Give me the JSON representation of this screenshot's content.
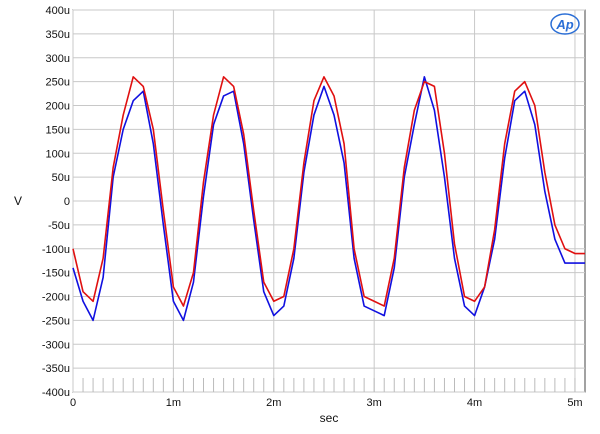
{
  "chart_data": {
    "type": "line",
    "title": "",
    "xlabel": "sec",
    "ylabel": "V",
    "xlim": [
      0,
      0.0051
    ],
    "ylim": [
      -0.0004,
      0.0004
    ],
    "grid": true,
    "logo_text": "Ap",
    "x_ticks": [
      {
        "value": 0,
        "label": "0"
      },
      {
        "value": 0.001,
        "label": "1m"
      },
      {
        "value": 0.002,
        "label": "2m"
      },
      {
        "value": 0.003,
        "label": "3m"
      },
      {
        "value": 0.004,
        "label": "4m"
      },
      {
        "value": 0.005,
        "label": "5m"
      }
    ],
    "y_ticks": [
      {
        "value": 0.0004,
        "label": "400u"
      },
      {
        "value": 0.00035,
        "label": "350u"
      },
      {
        "value": 0.0003,
        "label": "300u"
      },
      {
        "value": 0.00025,
        "label": "250u"
      },
      {
        "value": 0.0002,
        "label": "200u"
      },
      {
        "value": 0.00015,
        "label": "150u"
      },
      {
        "value": 0.0001,
        "label": "100u"
      },
      {
        "value": 5e-05,
        "label": "50u"
      },
      {
        "value": 0,
        "label": "0"
      },
      {
        "value": -5e-05,
        "label": "-50u"
      },
      {
        "value": -0.0001,
        "label": "-100u"
      },
      {
        "value": -0.00015,
        "label": "-150u"
      },
      {
        "value": -0.0002,
        "label": "-200u"
      },
      {
        "value": -0.00025,
        "label": "-250u"
      },
      {
        "value": -0.0003,
        "label": "-300u"
      },
      {
        "value": -0.00035,
        "label": "-350u"
      },
      {
        "value": -0.0004,
        "label": "-400u"
      }
    ],
    "series": [
      {
        "color": "#1010e0",
        "x": [
          0,
          0.0001,
          0.0002,
          0.0003,
          0.0004,
          0.0005,
          0.0006,
          0.0007,
          0.0008,
          0.0009,
          0.001,
          0.0011,
          0.0012,
          0.0013,
          0.0014,
          0.0015,
          0.0016,
          0.0017,
          0.0018,
          0.0019,
          0.002,
          0.0021,
          0.0022,
          0.0023,
          0.0024,
          0.0025,
          0.0026,
          0.0027,
          0.0028,
          0.0029,
          0.003,
          0.0031,
          0.0032,
          0.0033,
          0.0034,
          0.0035,
          0.0036,
          0.0037,
          0.0038,
          0.0039,
          0.004,
          0.0041,
          0.0042,
          0.0043,
          0.0044,
          0.0045,
          0.0046,
          0.0047,
          0.0048,
          0.0049,
          0.005,
          0.0051
        ],
        "values": [
          -0.00014,
          -0.00021,
          -0.00025,
          -0.00016,
          5e-05,
          0.00015,
          0.00021,
          0.00023,
          0.00012,
          -5e-05,
          -0.00021,
          -0.00025,
          -0.00017,
          1e-05,
          0.00016,
          0.00022,
          0.00023,
          0.00012,
          -4e-05,
          -0.00019,
          -0.00024,
          -0.00022,
          -0.00012,
          6e-05,
          0.00018,
          0.00024,
          0.00018,
          8e-05,
          -0.00012,
          -0.00022,
          -0.00023,
          -0.00024,
          -0.00014,
          5e-05,
          0.00016,
          0.00026,
          0.00019,
          5e-05,
          -0.00012,
          -0.00022,
          -0.00024,
          -0.00018,
          -8e-05,
          9e-05,
          0.00021,
          0.00023,
          0.00016,
          2e-05,
          -8e-05,
          -0.00013,
          -0.00013,
          -0.00013
        ]
      },
      {
        "color": "#e01010",
        "x": [
          0,
          0.0001,
          0.0002,
          0.0003,
          0.0004,
          0.0005,
          0.0006,
          0.0007,
          0.0008,
          0.0009,
          0.001,
          0.0011,
          0.0012,
          0.0013,
          0.0014,
          0.0015,
          0.0016,
          0.0017,
          0.0018,
          0.0019,
          0.002,
          0.0021,
          0.0022,
          0.0023,
          0.0024,
          0.0025,
          0.0026,
          0.0027,
          0.0028,
          0.0029,
          0.003,
          0.0031,
          0.0032,
          0.0033,
          0.0034,
          0.0035,
          0.0036,
          0.0037,
          0.0038,
          0.0039,
          0.004,
          0.0041,
          0.0042,
          0.0043,
          0.0044,
          0.0045,
          0.0046,
          0.0047,
          0.0048,
          0.0049,
          0.005,
          0.0051
        ],
        "values": [
          -0.0001,
          -0.00019,
          -0.00021,
          -0.00012,
          7e-05,
          0.00018,
          0.00026,
          0.00024,
          0.00015,
          -2e-05,
          -0.00018,
          -0.00022,
          -0.00015,
          4e-05,
          0.00018,
          0.00026,
          0.00024,
          0.00014,
          -2e-05,
          -0.00017,
          -0.00021,
          -0.0002,
          -0.0001,
          8e-05,
          0.00021,
          0.00026,
          0.00022,
          0.00012,
          -0.0001,
          -0.0002,
          -0.00021,
          -0.00022,
          -0.00012,
          7e-05,
          0.00019,
          0.00025,
          0.00024,
          0.0001,
          -9e-05,
          -0.0002,
          -0.00021,
          -0.00018,
          -6e-05,
          0.00012,
          0.00023,
          0.00025,
          0.0002,
          6e-05,
          -5e-05,
          -0.0001,
          -0.00011,
          -0.00011
        ]
      }
    ]
  }
}
